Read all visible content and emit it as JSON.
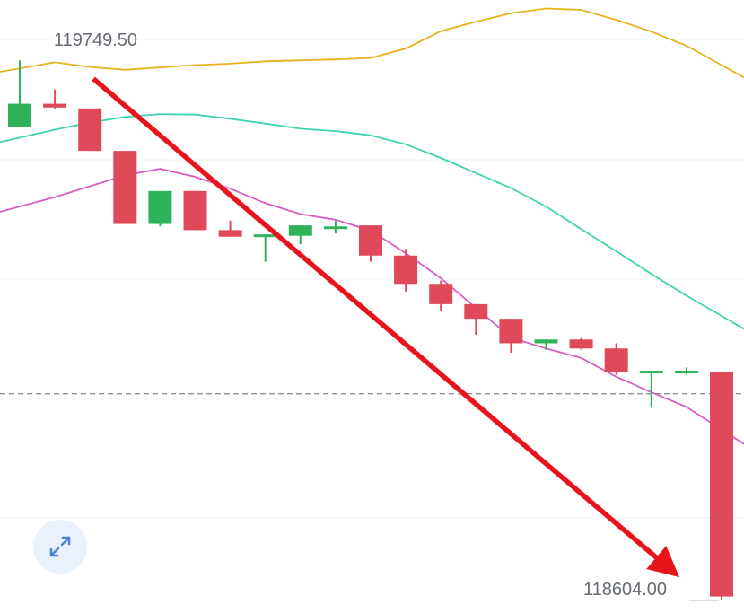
{
  "chart_data": {
    "type": "candlestick",
    "high_label": "119749.50",
    "low_label": "118604.00",
    "up_color": "#2fb35a",
    "down_color": "#e0495a",
    "ylim": [
      118580,
      119880
    ],
    "candles": [
      {
        "open": 119610,
        "high": 119752,
        "low": 119610,
        "close": 119660
      },
      {
        "open": 119660,
        "high": 119690,
        "low": 119650,
        "close": 119652
      },
      {
        "open": 119650,
        "high": 119650,
        "low": 119560,
        "close": 119560
      },
      {
        "open": 119560,
        "high": 119560,
        "low": 119405,
        "close": 119405
      },
      {
        "open": 119405,
        "high": 119475,
        "low": 119400,
        "close": 119475
      },
      {
        "open": 119475,
        "high": 119475,
        "low": 119392,
        "close": 119392
      },
      {
        "open": 119392,
        "high": 119412,
        "low": 119378,
        "close": 119378
      },
      {
        "open": 119380,
        "high": 119380,
        "low": 119325,
        "close": 119380
      },
      {
        "open": 119380,
        "high": 119402,
        "low": 119362,
        "close": 119402
      },
      {
        "open": 119397,
        "high": 119412,
        "low": 119385,
        "close": 119397
      },
      {
        "open": 119402,
        "high": 119402,
        "low": 119325,
        "close": 119338
      },
      {
        "open": 119338,
        "high": 119352,
        "low": 119262,
        "close": 119278
      },
      {
        "open": 119278,
        "high": 119285,
        "low": 119220,
        "close": 119235
      },
      {
        "open": 119235,
        "high": 119235,
        "low": 119170,
        "close": 119204
      },
      {
        "open": 119204,
        "high": 119204,
        "low": 119132,
        "close": 119152
      },
      {
        "open": 119152,
        "high": 119160,
        "low": 119138,
        "close": 119160
      },
      {
        "open": 119160,
        "high": 119163,
        "low": 119139,
        "close": 119141
      },
      {
        "open": 119141,
        "high": 119152,
        "low": 119085,
        "close": 119091
      },
      {
        "open": 119091,
        "high": 119091,
        "low": 119016,
        "close": 119091
      },
      {
        "open": 119091,
        "high": 119101,
        "low": 119085,
        "close": 119091
      },
      {
        "open": 119091,
        "high": 119091,
        "low": 118607,
        "close": 118615
      }
    ],
    "bands": {
      "upper": {
        "color": "#e7b21d",
        "values": [
          119735,
          119748,
          119738,
          119732,
          119737,
          119742,
          119745,
          119750,
          119752,
          119754,
          119757,
          119777,
          119814,
          119834,
          119852,
          119862,
          119859,
          119838,
          119813,
          119783,
          119742
        ]
      },
      "middle": {
        "color": "#3dd3b0",
        "values": [
          119588,
          119605,
          119620,
          119632,
          119638,
          119637,
          119628,
          119618,
          119607,
          119602,
          119593,
          119574,
          119545,
          119513,
          119481,
          119442,
          119394,
          119347,
          119299,
          119253,
          119210
        ]
      },
      "lower": {
        "color": "#d85ec2",
        "values": [
          119442,
          119462,
          119485,
          119508,
          119522,
          119505,
          119480,
          119449,
          119426,
          119414,
          119391,
          119343,
          119290,
          119227,
          119164,
          119141,
          119121,
          119081,
          119048,
          119017,
          118969
        ]
      }
    },
    "reference_line": 119045,
    "trend_arrow": {
      "from": [
        2.1,
        119713
      ],
      "to": [
        18.8,
        118656
      ],
      "color": "#e8141c"
    }
  },
  "controls": {
    "expand_icon": "expand-arrows-icon"
  }
}
